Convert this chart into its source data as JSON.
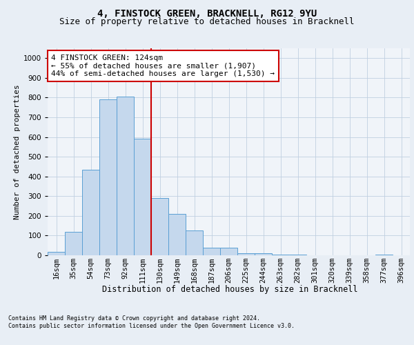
{
  "title1": "4, FINSTOCK GREEN, BRACKNELL, RG12 9YU",
  "title2": "Size of property relative to detached houses in Bracknell",
  "xlabel": "Distribution of detached houses by size in Bracknell",
  "ylabel": "Number of detached properties",
  "footnote": "Contains HM Land Registry data © Crown copyright and database right 2024.\nContains public sector information licensed under the Open Government Licence v3.0.",
  "bar_labels": [
    "16sqm",
    "35sqm",
    "54sqm",
    "73sqm",
    "92sqm",
    "111sqm",
    "130sqm",
    "149sqm",
    "168sqm",
    "187sqm",
    "206sqm",
    "225sqm",
    "244sqm",
    "263sqm",
    "282sqm",
    "301sqm",
    "320sqm",
    "339sqm",
    "358sqm",
    "377sqm",
    "396sqm"
  ],
  "bar_values": [
    18,
    120,
    435,
    790,
    805,
    590,
    290,
    210,
    125,
    40,
    40,
    12,
    10,
    5,
    5,
    0,
    0,
    0,
    0,
    5,
    0
  ],
  "bar_color": "#c5d8ed",
  "bar_edge_color": "#5a9fd4",
  "vline_color": "#cc0000",
  "vline_x": 5.5,
  "annotation_text": "4 FINSTOCK GREEN: 124sqm\n← 55% of detached houses are smaller (1,907)\n44% of semi-detached houses are larger (1,530) →",
  "annotation_box_facecolor": "white",
  "annotation_box_edgecolor": "#cc0000",
  "ylim": [
    0,
    1050
  ],
  "yticks": [
    0,
    100,
    200,
    300,
    400,
    500,
    600,
    700,
    800,
    900,
    1000
  ],
  "bg_color": "#e8eef5",
  "plot_bg_color": "#f0f4f9",
  "grid_color": "#c0cfe0",
  "title1_fontsize": 10,
  "title2_fontsize": 9,
  "xlabel_fontsize": 8.5,
  "ylabel_fontsize": 8,
  "tick_fontsize": 7.5,
  "ann_fontsize": 8,
  "footnote_fontsize": 6
}
